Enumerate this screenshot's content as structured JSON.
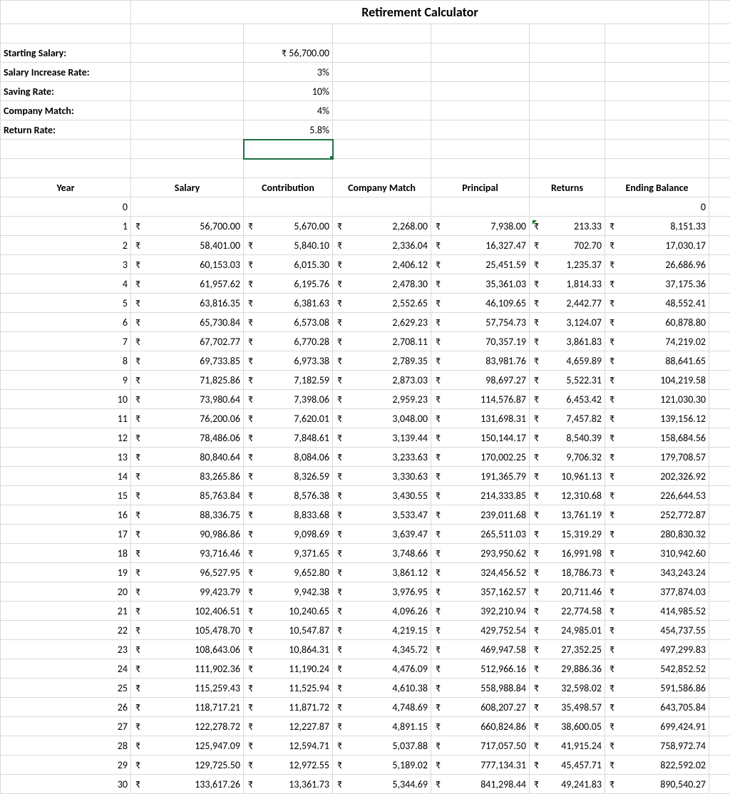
{
  "title": "Retirement Calculator",
  "currency_symbol": "₹",
  "colors": {
    "grid": "#d9d9d9",
    "selection": "#1e7145",
    "error_triangle": "#008000",
    "background": "#ffffff",
    "text": "#000000"
  },
  "fonts": {
    "family": "Calibri",
    "base_size_pt": 11,
    "title_size_pt": 14,
    "title_weight": "bold",
    "header_weight": "bold"
  },
  "inputs": [
    {
      "label": "Starting Salary:",
      "value": "₹  56,700.00",
      "format": "currency"
    },
    {
      "label": "Salary Increase Rate:",
      "value": "3%",
      "format": "percent"
    },
    {
      "label": "Saving Rate:",
      "value": "10%",
      "format": "percent"
    },
    {
      "label": "Company Match:",
      "value": "4%",
      "format": "percent"
    },
    {
      "label": "Return Rate:",
      "value": "5.8%",
      "format": "percent"
    }
  ],
  "selected_cell": {
    "row_after_inputs": true,
    "col_index": 2
  },
  "error_triangle_cell": {
    "year": 1,
    "column": "Returns"
  },
  "table": {
    "columns": [
      "Year",
      "Salary",
      "Contribution",
      "Company Match",
      "Principal",
      "Returns",
      "Ending Balance"
    ],
    "column_align": [
      "center",
      "center",
      "center",
      "center",
      "center",
      "center",
      "center"
    ],
    "currency_columns": [
      false,
      true,
      true,
      true,
      true,
      true,
      true
    ],
    "rows": [
      {
        "year": "0",
        "cells": [
          "",
          "",
          "",
          "",
          "",
          "0"
        ],
        "first_row_plain": true
      },
      {
        "year": "1",
        "cells": [
          "56,700.00",
          "5,670.00",
          "2,268.00",
          "7,938.00",
          "213.33",
          "8,151.33"
        ]
      },
      {
        "year": "2",
        "cells": [
          "58,401.00",
          "5,840.10",
          "2,336.04",
          "16,327.47",
          "702.70",
          "17,030.17"
        ]
      },
      {
        "year": "3",
        "cells": [
          "60,153.03",
          "6,015.30",
          "2,406.12",
          "25,451.59",
          "1,235.37",
          "26,686.96"
        ]
      },
      {
        "year": "4",
        "cells": [
          "61,957.62",
          "6,195.76",
          "2,478.30",
          "35,361.03",
          "1,814.33",
          "37,175.36"
        ]
      },
      {
        "year": "5",
        "cells": [
          "63,816.35",
          "6,381.63",
          "2,552.65",
          "46,109.65",
          "2,442.77",
          "48,552.41"
        ]
      },
      {
        "year": "6",
        "cells": [
          "65,730.84",
          "6,573.08",
          "2,629.23",
          "57,754.73",
          "3,124.07",
          "60,878.80"
        ]
      },
      {
        "year": "7",
        "cells": [
          "67,702.77",
          "6,770.28",
          "2,708.11",
          "70,357.19",
          "3,861.83",
          "74,219.02"
        ]
      },
      {
        "year": "8",
        "cells": [
          "69,733.85",
          "6,973.38",
          "2,789.35",
          "83,981.76",
          "4,659.89",
          "88,641.65"
        ]
      },
      {
        "year": "9",
        "cells": [
          "71,825.86",
          "7,182.59",
          "2,873.03",
          "98,697.27",
          "5,522.31",
          "104,219.58"
        ]
      },
      {
        "year": "10",
        "cells": [
          "73,980.64",
          "7,398.06",
          "2,959.23",
          "114,576.87",
          "6,453.42",
          "121,030.30"
        ]
      },
      {
        "year": "11",
        "cells": [
          "76,200.06",
          "7,620.01",
          "3,048.00",
          "131,698.31",
          "7,457.82",
          "139,156.12"
        ]
      },
      {
        "year": "12",
        "cells": [
          "78,486.06",
          "7,848.61",
          "3,139.44",
          "150,144.17",
          "8,540.39",
          "158,684.56"
        ]
      },
      {
        "year": "13",
        "cells": [
          "80,840.64",
          "8,084.06",
          "3,233.63",
          "170,002.25",
          "9,706.32",
          "179,708.57"
        ]
      },
      {
        "year": "14",
        "cells": [
          "83,265.86",
          "8,326.59",
          "3,330.63",
          "191,365.79",
          "10,961.13",
          "202,326.92"
        ]
      },
      {
        "year": "15",
        "cells": [
          "85,763.84",
          "8,576.38",
          "3,430.55",
          "214,333.85",
          "12,310.68",
          "226,644.53"
        ]
      },
      {
        "year": "16",
        "cells": [
          "88,336.75",
          "8,833.68",
          "3,533.47",
          "239,011.68",
          "13,761.19",
          "252,772.87"
        ]
      },
      {
        "year": "17",
        "cells": [
          "90,986.86",
          "9,098.69",
          "3,639.47",
          "265,511.03",
          "15,319.29",
          "280,830.32"
        ]
      },
      {
        "year": "18",
        "cells": [
          "93,716.46",
          "9,371.65",
          "3,748.66",
          "293,950.62",
          "16,991.98",
          "310,942.60"
        ]
      },
      {
        "year": "19",
        "cells": [
          "96,527.95",
          "9,652.80",
          "3,861.12",
          "324,456.52",
          "18,786.73",
          "343,243.24"
        ]
      },
      {
        "year": "20",
        "cells": [
          "99,423.79",
          "9,942.38",
          "3,976.95",
          "357,162.57",
          "20,711.46",
          "377,874.03"
        ]
      },
      {
        "year": "21",
        "cells": [
          "102,406.51",
          "10,240.65",
          "4,096.26",
          "392,210.94",
          "22,774.58",
          "414,985.52"
        ]
      },
      {
        "year": "22",
        "cells": [
          "105,478.70",
          "10,547.87",
          "4,219.15",
          "429,752.54",
          "24,985.01",
          "454,737.55"
        ]
      },
      {
        "year": "23",
        "cells": [
          "108,643.06",
          "10,864.31",
          "4,345.72",
          "469,947.58",
          "27,352.25",
          "497,299.83"
        ]
      },
      {
        "year": "24",
        "cells": [
          "111,902.36",
          "11,190.24",
          "4,476.09",
          "512,966.16",
          "29,886.36",
          "542,852.52"
        ]
      },
      {
        "year": "25",
        "cells": [
          "115,259.43",
          "11,525.94",
          "4,610.38",
          "558,988.84",
          "32,598.02",
          "591,586.86"
        ]
      },
      {
        "year": "26",
        "cells": [
          "118,717.21",
          "11,871.72",
          "4,748.69",
          "608,207.27",
          "35,498.57",
          "643,705.84"
        ]
      },
      {
        "year": "27",
        "cells": [
          "122,278.72",
          "12,227.87",
          "4,891.15",
          "660,824.86",
          "38,600.05",
          "699,424.91"
        ]
      },
      {
        "year": "28",
        "cells": [
          "125,947.09",
          "12,594.71",
          "5,037.88",
          "717,057.50",
          "41,915.24",
          "758,972.74"
        ]
      },
      {
        "year": "29",
        "cells": [
          "129,725.50",
          "12,972.55",
          "5,189.02",
          "777,134.31",
          "45,457.71",
          "822,592.02"
        ]
      },
      {
        "year": "30",
        "cells": [
          "133,617.26",
          "13,361.73",
          "5,344.69",
          "841,298.44",
          "49,241.83",
          "890,540.27"
        ]
      }
    ]
  }
}
